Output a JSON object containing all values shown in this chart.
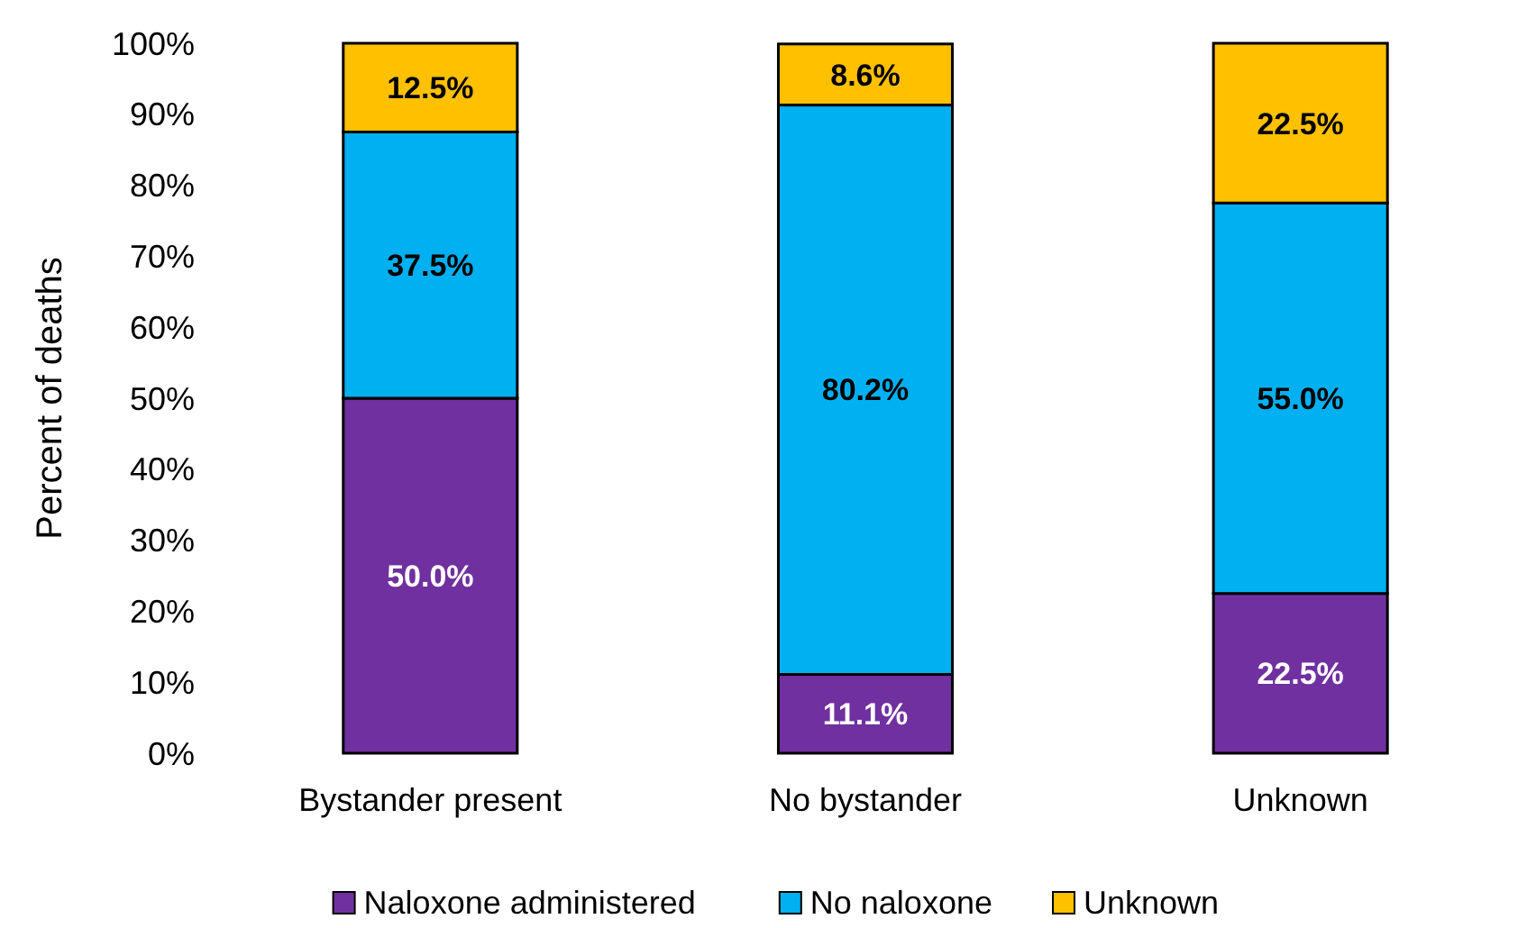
{
  "chart_data": {
    "type": "bar",
    "stacked": true,
    "ylabel": "Percent of deaths",
    "categories": [
      "Bystander present",
      "No bystander",
      "Unknown"
    ],
    "series": [
      {
        "name": "Naloxone administered",
        "color": "#7030a0",
        "values": [
          50.0,
          11.1,
          22.5
        ],
        "value_labels": [
          "50.0%",
          "11.1%",
          "22.5%"
        ]
      },
      {
        "name": "No naloxone",
        "color": "#00b0f0",
        "values": [
          37.5,
          80.2,
          55.0
        ],
        "value_labels": [
          "37.5%",
          "80.2%",
          "55.0%"
        ]
      },
      {
        "name": "Unknown",
        "color": "#ffc000",
        "values": [
          12.5,
          8.6,
          22.5
        ],
        "value_labels": [
          "12.5%",
          "8.6%",
          "22.5%"
        ]
      }
    ],
    "ylim": [
      0,
      100
    ],
    "yticks": [
      {
        "value": 0,
        "label": "0%"
      },
      {
        "value": 10,
        "label": "10%"
      },
      {
        "value": 20,
        "label": "20%"
      },
      {
        "value": 30,
        "label": "30%"
      },
      {
        "value": 40,
        "label": "40%"
      },
      {
        "value": 50,
        "label": "50%"
      },
      {
        "value": 60,
        "label": "60%"
      },
      {
        "value": 70,
        "label": "70%"
      },
      {
        "value": 80,
        "label": "80%"
      },
      {
        "value": 90,
        "label": "90%"
      },
      {
        "value": 100,
        "label": "100%"
      }
    ],
    "legend": "bottom"
  }
}
